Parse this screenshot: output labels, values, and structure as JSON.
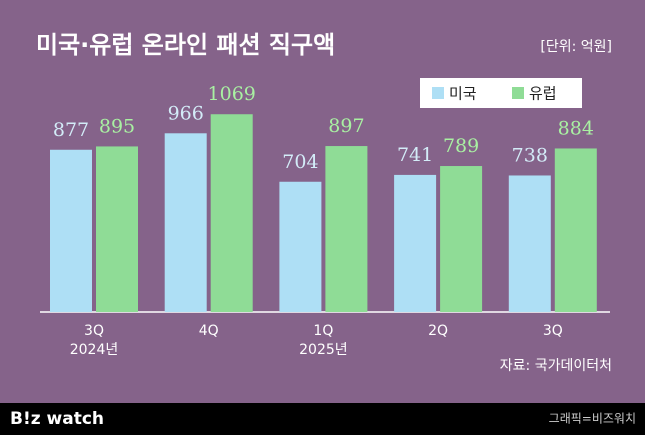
{
  "chart_data": {
    "type": "bar",
    "title": "미국·유럽 온라인 패션 직구액",
    "unit": "[단위: 억원]",
    "categories": [
      "3Q",
      "4Q",
      "1Q",
      "2Q",
      "3Q"
    ],
    "year_labels": [
      "2024년",
      null,
      "2025년",
      null,
      null
    ],
    "series": [
      {
        "name": "미국",
        "color": "#aedff5",
        "label_color": "#d3ecf8",
        "values": [
          877,
          966,
          704,
          741,
          738
        ]
      },
      {
        "name": "유럽",
        "color": "#8fdc96",
        "label_color": "#a9f1a2",
        "values": [
          895,
          1069,
          897,
          789,
          884
        ]
      }
    ],
    "source": "자료: 국가데이터처",
    "logo": "B!z watch",
    "credit": "그래픽=비즈워치"
  }
}
